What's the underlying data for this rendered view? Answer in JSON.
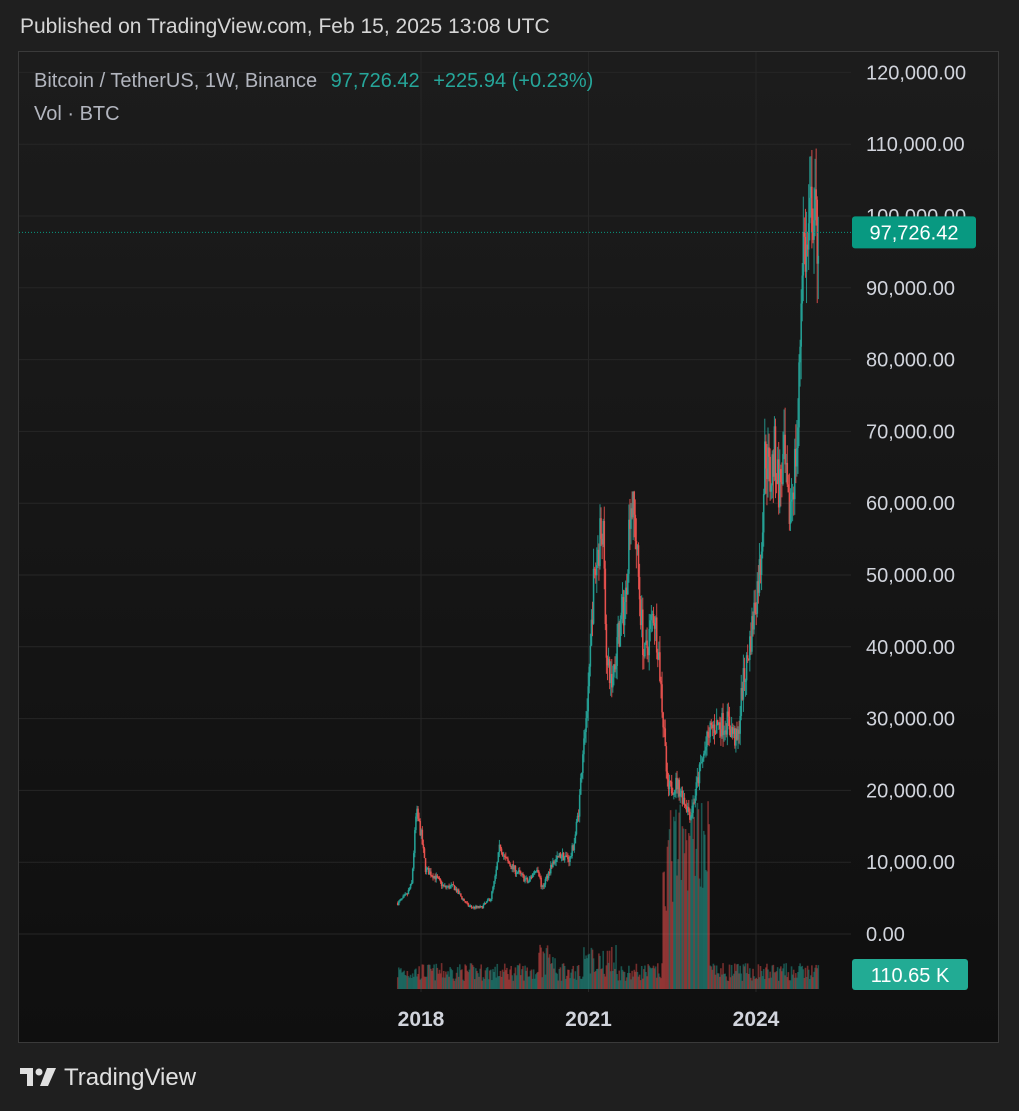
{
  "header": {
    "published": "Published on TradingView.com, Feb 15, 2025 13:08 UTC"
  },
  "legend": {
    "symbol": "Bitcoin / TetherUS, 1W, Binance",
    "price": "97,726.42",
    "change": "+225.94 (+0.23%)",
    "volume_label": "Vol · BTC"
  },
  "price_badge": "97,726.42",
  "volume_badge": "110.65 K",
  "footer": {
    "brand": "TradingView"
  },
  "colors": {
    "up": "#26a69a",
    "down": "#ef5350",
    "badge": "#089981",
    "background": "#161616"
  },
  "chart_data": {
    "type": "line",
    "title": "",
    "xlabel": "",
    "ylabel": "",
    "ylim": [
      0,
      120000
    ],
    "y_ticks": [
      "120,000.00",
      "110,000.00",
      "100,000.00",
      "90,000.00",
      "80,000.00",
      "70,000.00",
      "60,000.00",
      "50,000.00",
      "40,000.00",
      "30,000.00",
      "20,000.00",
      "10,000.00",
      "0.00"
    ],
    "x_ticks": [
      "2018",
      "2021",
      "2024"
    ],
    "last_price": 97726.42,
    "series": [
      {
        "values_are": "approximate weekly close (USDT), Aug 2017 – Feb 2025",
        "x": [
          "2017-08",
          "2017-10",
          "2017-11",
          "2017-12",
          "2018-01",
          "2018-02",
          "2018-04",
          "2018-06",
          "2018-08",
          "2018-11",
          "2018-12",
          "2019-02",
          "2019-04",
          "2019-05",
          "2019-06",
          "2019-07",
          "2019-09",
          "2019-10",
          "2019-12",
          "2020-02",
          "2020-03",
          "2020-05",
          "2020-07",
          "2020-09",
          "2020-10",
          "2020-11",
          "2020-12",
          "2021-01",
          "2021-02",
          "2021-04",
          "2021-05",
          "2021-06",
          "2021-07",
          "2021-09",
          "2021-10",
          "2021-11",
          "2021-12",
          "2022-01",
          "2022-03",
          "2022-04",
          "2022-05",
          "2022-06",
          "2022-08",
          "2022-11",
          "2023-01",
          "2023-03",
          "2023-04",
          "2023-07",
          "2023-09",
          "2023-10",
          "2023-11",
          "2023-12",
          "2024-02",
          "2024-03",
          "2024-04",
          "2024-05",
          "2024-06",
          "2024-07",
          "2024-08",
          "2024-09",
          "2024-10",
          "2024-11",
          "2024-12",
          "2025-01",
          "2025-02"
        ],
        "y": [
          4300,
          5500,
          7000,
          17000,
          14000,
          9000,
          8000,
          6500,
          6600,
          4000,
          3700,
          3700,
          5000,
          8000,
          12500,
          10500,
          9000,
          8500,
          7200,
          9500,
          6300,
          9500,
          11000,
          10400,
          13000,
          18000,
          28000,
          33000,
          48000,
          58000,
          37000,
          35000,
          40000,
          47000,
          61000,
          57000,
          47000,
          38000,
          45000,
          40000,
          30000,
          20000,
          21000,
          16500,
          23000,
          28000,
          29000,
          29500,
          26500,
          34000,
          37500,
          42000,
          52000,
          68000,
          63000,
          67000,
          62000,
          66000,
          58000,
          63000,
          70000,
          97000,
          94000,
          102000,
          97726
        ]
      }
    ],
    "volume": {
      "last": "110.65 K",
      "unit": "BTC"
    }
  }
}
